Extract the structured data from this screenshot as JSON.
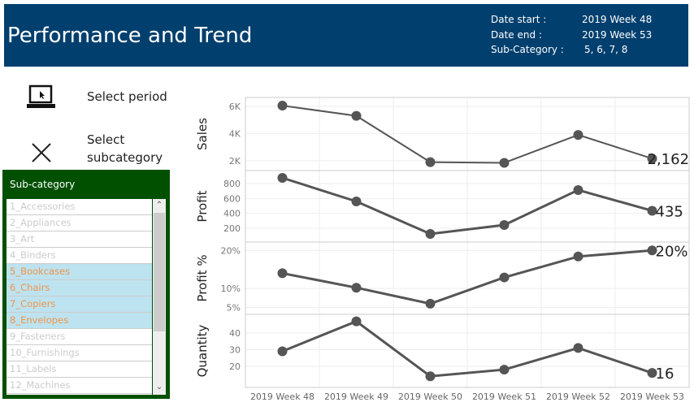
{
  "header": {
    "title": "Performance and Trend",
    "date_start_label": "Date start :",
    "date_start": "2019 Week 48",
    "date_end_label": "Date end :",
    "date_end": "2019 Week 53",
    "subcat_label": "Sub-Category :",
    "subcat": "5, 6, 7, 8"
  },
  "controls": {
    "select_period": "Select period",
    "select_subcategory_1": "Select",
    "select_subcategory_2": "subcategory"
  },
  "filter": {
    "title": "Sub-category",
    "items": [
      {
        "label": "1_Accessories",
        "selected": false
      },
      {
        "label": "2_Appliances",
        "selected": false
      },
      {
        "label": "3_Art",
        "selected": false
      },
      {
        "label": "4_Binders",
        "selected": false
      },
      {
        "label": "5_Bookcases",
        "selected": true
      },
      {
        "label": "6_Chairs",
        "selected": true
      },
      {
        "label": "7_Copiers",
        "selected": true
      },
      {
        "label": "8_Envelopes",
        "selected": true
      },
      {
        "label": "9_Fasteners",
        "selected": false
      },
      {
        "label": "10_Furnishings",
        "selected": false
      },
      {
        "label": "11_Labels",
        "selected": false
      },
      {
        "label": "12_Machines",
        "selected": false
      }
    ]
  },
  "chart_data": {
    "type": "line",
    "categories": [
      "2019 Week 48",
      "2019 Week 49",
      "2019 Week 50",
      "2019 Week 51",
      "2019 Week 52",
      "2019 Week 53"
    ],
    "series": [
      {
        "name": "Sales",
        "values": [
          6050,
          5300,
          1900,
          1850,
          3900,
          2162
        ],
        "ylim": [
          1280,
          6650
        ],
        "ticks": [
          {
            "v": 2000,
            "l": "2K"
          },
          {
            "v": 4000,
            "l": "4K"
          },
          {
            "v": 6000,
            "l": "6K"
          }
        ],
        "end_label": "2,162"
      },
      {
        "name": "Profit",
        "values": [
          876,
          560,
          124,
          244,
          713,
          435
        ],
        "ylim": [
          15,
          974
        ],
        "ticks": [
          {
            "v": 200,
            "l": "200"
          },
          {
            "v": 400,
            "l": "400"
          },
          {
            "v": 600,
            "l": "600"
          },
          {
            "v": 800,
            "l": "800"
          }
        ],
        "end_label": "435"
      },
      {
        "name": "Profit %",
        "values": [
          14,
          10.2,
          6,
          12.9,
          18.4,
          20
        ],
        "ylim": [
          3.2,
          22.2
        ],
        "ticks": [
          {
            "v": 5,
            "l": "5%"
          },
          {
            "v": 10,
            "l": "10%"
          },
          {
            "v": 20,
            "l": "20%"
          }
        ],
        "end_label": "20%"
      },
      {
        "name": "Quantity",
        "values": [
          29,
          47,
          14,
          18,
          31,
          16
        ],
        "ylim": [
          7.3,
          51.2
        ],
        "ticks": [
          {
            "v": 20,
            "l": "20"
          },
          {
            "v": 30,
            "l": "30"
          },
          {
            "v": 40,
            "l": "40"
          }
        ],
        "end_label": "16"
      }
    ],
    "colors": {
      "line": "#555555",
      "grid": "#eeeeee"
    }
  }
}
